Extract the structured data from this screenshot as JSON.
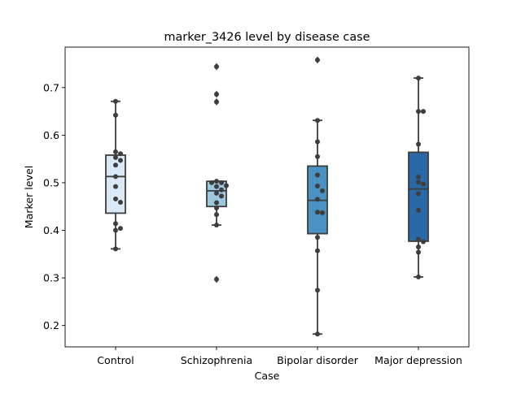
{
  "chart_data": {
    "type": "box",
    "title": "marker_3426 level by disease case",
    "xlabel": "Case",
    "ylabel": "Marker level",
    "ylim": [
      0.155,
      0.785
    ],
    "yticks": [
      0.2,
      0.3,
      0.4,
      0.5,
      0.6,
      0.7
    ],
    "grid": false,
    "categories": [
      "Control",
      "Schizophrenia",
      "Bipolar disorder",
      "Major depression"
    ],
    "colors": [
      "#dbe9f6",
      "#9dc9e0",
      "#4a92c4",
      "#2a69a8"
    ],
    "line_color": "#3d3d3d",
    "point_color": "#3d3d3d",
    "boxes": [
      {
        "category": "Control",
        "whisker_low": 0.361,
        "q1": 0.436,
        "median": 0.513,
        "q3": 0.558,
        "whisker_high": 0.671,
        "outliers": [],
        "points": [
          0.671,
          0.642,
          0.565,
          0.561,
          0.553,
          0.547,
          0.537,
          0.513,
          0.492,
          0.466,
          0.459,
          0.414,
          0.404,
          0.4,
          0.361
        ]
      },
      {
        "category": "Schizophrenia",
        "whisker_low": 0.411,
        "q1": 0.45,
        "median": 0.483,
        "q3": 0.503,
        "whisker_high": 0.503,
        "outliers": [
          0.744,
          0.686,
          0.67,
          0.297
        ],
        "points": [
          0.744,
          0.686,
          0.67,
          0.503,
          0.5,
          0.5,
          0.494,
          0.492,
          0.485,
          0.478,
          0.472,
          0.458,
          0.447,
          0.433,
          0.411,
          0.297
        ]
      },
      {
        "category": "Bipolar disorder",
        "whisker_low": 0.182,
        "q1": 0.393,
        "median": 0.463,
        "q3": 0.535,
        "whisker_high": 0.631,
        "outliers": [
          0.758
        ],
        "points": [
          0.758,
          0.631,
          0.586,
          0.555,
          0.516,
          0.493,
          0.483,
          0.465,
          0.438,
          0.437,
          0.385,
          0.357,
          0.274,
          0.182
        ]
      },
      {
        "category": "Major depression",
        "whisker_low": 0.302,
        "q1": 0.377,
        "median": 0.487,
        "q3": 0.564,
        "whisker_high": 0.72,
        "outliers": [],
        "points": [
          0.72,
          0.65,
          0.65,
          0.581,
          0.512,
          0.501,
          0.497,
          0.477,
          0.442,
          0.381,
          0.376,
          0.365,
          0.354,
          0.302
        ]
      }
    ]
  }
}
